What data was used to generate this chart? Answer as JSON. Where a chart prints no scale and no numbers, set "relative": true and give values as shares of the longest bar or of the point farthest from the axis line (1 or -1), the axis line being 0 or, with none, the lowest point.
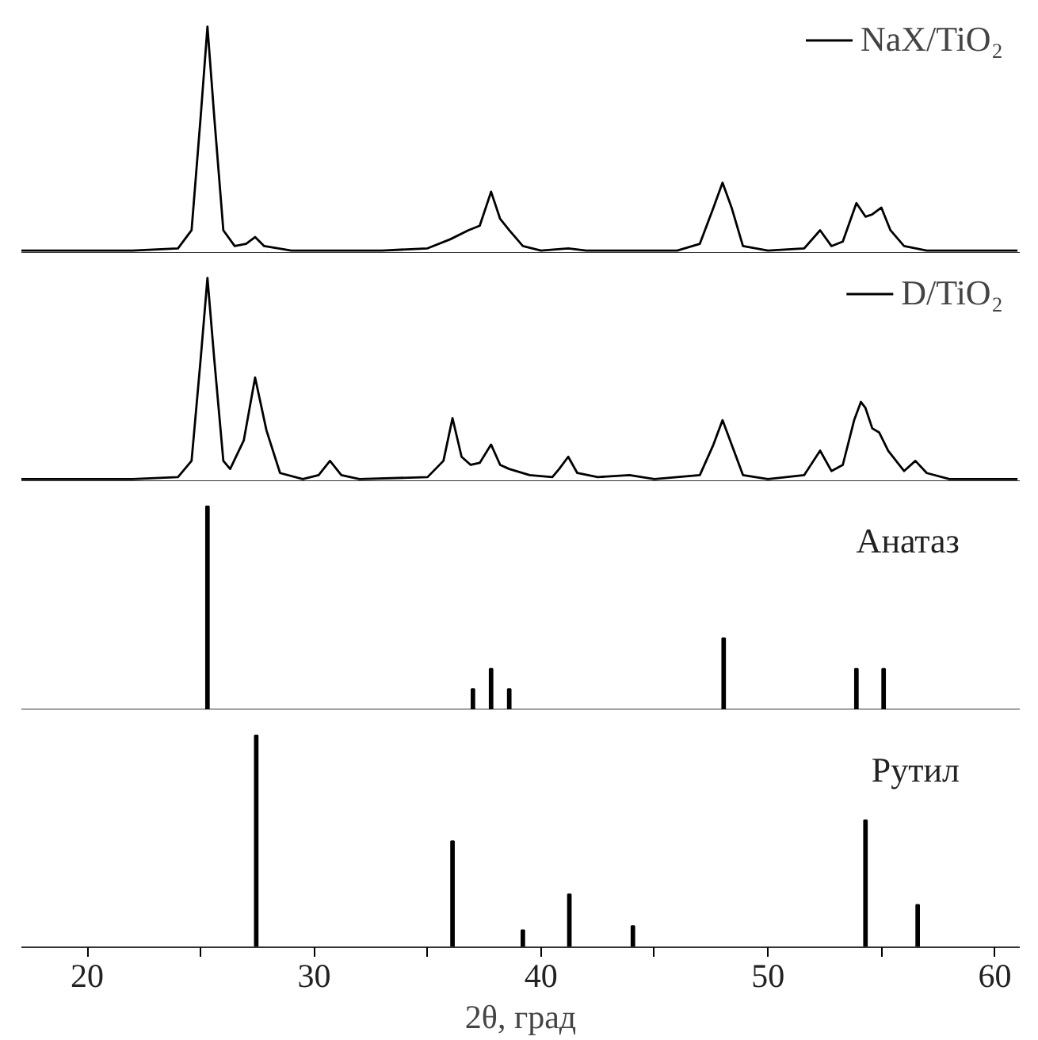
{
  "chart_data": [
    {
      "type": "line",
      "relative": true,
      "xlim": [
        17.1,
        61.1
      ],
      "tick_labels": false,
      "legend": "top right",
      "x": [
        17.1,
        22,
        24,
        24.6,
        25.0,
        25.3,
        25.6,
        26.0,
        26.5,
        27.0,
        27.4,
        27.8,
        29,
        33,
        35,
        36,
        36.8,
        37.3,
        37.8,
        38.2,
        38.6,
        39.2,
        40,
        41.2,
        42,
        46,
        47,
        47.6,
        48,
        48.4,
        48.9,
        50,
        51.6,
        52.3,
        52.8,
        53.3,
        53.9,
        54.3,
        54.6,
        55.0,
        55.4,
        56,
        57,
        61
      ],
      "series": [
        {
          "name": "NaX/TiO₂",
          "color": "#000000",
          "values": [
            0.01,
            0.01,
            0.02,
            0.1,
            0.6,
            1.0,
            0.6,
            0.1,
            0.03,
            0.04,
            0.07,
            0.03,
            0.01,
            0.01,
            0.02,
            0.06,
            0.1,
            0.12,
            0.27,
            0.15,
            0.1,
            0.03,
            0.01,
            0.02,
            0.01,
            0.01,
            0.04,
            0.2,
            0.31,
            0.2,
            0.03,
            0.01,
            0.02,
            0.1,
            0.03,
            0.05,
            0.22,
            0.16,
            0.17,
            0.2,
            0.1,
            0.03,
            0.01,
            0.01
          ]
        }
      ]
    },
    {
      "type": "line",
      "relative": true,
      "xlim": [
        17.1,
        61.1
      ],
      "tick_labels": false,
      "legend": "top right",
      "x": [
        17.1,
        22,
        24,
        24.6,
        25.0,
        25.3,
        25.6,
        26.0,
        26.3,
        26.6,
        26.9,
        27.4,
        27.9,
        28.5,
        29.5,
        30.2,
        30.7,
        31.2,
        32,
        35,
        35.7,
        36.1,
        36.5,
        36.9,
        37.3,
        37.8,
        38.2,
        38.6,
        39.5,
        40.5,
        40.8,
        41.2,
        41.6,
        42.5,
        43.9,
        45,
        47,
        47.6,
        48,
        48.4,
        48.9,
        50,
        51.6,
        52.3,
        52.8,
        53.3,
        53.8,
        54.1,
        54.3,
        54.6,
        54.9,
        55.3,
        56,
        56.5,
        57,
        58,
        61
      ],
      "series": [
        {
          "name": "D/TiO₂",
          "color": "#000000",
          "values": [
            0.01,
            0.01,
            0.02,
            0.1,
            0.6,
            1.0,
            0.6,
            0.1,
            0.06,
            0.13,
            0.2,
            0.51,
            0.25,
            0.04,
            0.01,
            0.03,
            0.1,
            0.03,
            0.01,
            0.02,
            0.1,
            0.31,
            0.12,
            0.08,
            0.09,
            0.18,
            0.08,
            0.06,
            0.03,
            0.02,
            0.06,
            0.12,
            0.04,
            0.02,
            0.03,
            0.01,
            0.03,
            0.18,
            0.3,
            0.18,
            0.03,
            0.01,
            0.03,
            0.15,
            0.05,
            0.08,
            0.3,
            0.39,
            0.36,
            0.26,
            0.24,
            0.15,
            0.05,
            0.1,
            0.04,
            0.01,
            0.01
          ]
        }
      ]
    },
    {
      "type": "bar",
      "relative": true,
      "xlim": [
        17.1,
        61.1
      ],
      "tick_labels": false,
      "x": [
        25.3,
        37.0,
        37.8,
        38.6,
        48.05,
        53.9,
        55.1
      ],
      "series": [
        {
          "name": "Анатаз",
          "color": "#000000",
          "values": [
            1.0,
            0.1,
            0.2,
            0.1,
            0.35,
            0.2,
            0.2
          ]
        }
      ]
    },
    {
      "type": "bar",
      "relative": true,
      "xlim": [
        17.1,
        61.1
      ],
      "tick_labels": "x",
      "xlabel": "2θ, град",
      "xticks": [
        20,
        {
          "value": 25,
          "label": null
        },
        30,
        {
          "value": 35,
          "label": null
        },
        40,
        {
          "value": 45,
          "label": null
        },
        50,
        {
          "value": 55,
          "label": null
        },
        60
      ],
      "x": [
        27.45,
        36.1,
        39.2,
        41.25,
        44.05,
        54.3,
        56.6
      ],
      "series": [
        {
          "name": "Рутил",
          "color": "#000000",
          "values": [
            1.0,
            0.5,
            0.08,
            0.25,
            0.1,
            0.6,
            0.2
          ]
        }
      ]
    }
  ]
}
